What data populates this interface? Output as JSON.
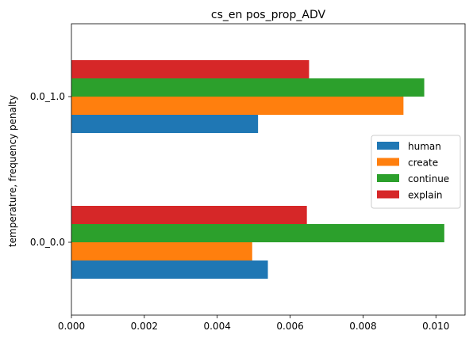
{
  "chart_data": {
    "type": "bar",
    "orientation": "horizontal",
    "title": "cs_en pos_prop_ADV",
    "xlabel": "",
    "ylabel": "temperature, frequency penalty",
    "categories": [
      "0.0_0.0",
      "0.0_1.0"
    ],
    "xlim": [
      0,
      0.0108
    ],
    "xticks": [
      0.0,
      0.002,
      0.004,
      0.006,
      0.008,
      0.01
    ],
    "xtick_labels": [
      "0.000",
      "0.002",
      "0.004",
      "0.006",
      "0.008",
      "0.010"
    ],
    "series": [
      {
        "name": "human",
        "color": "#1f77b4",
        "values": [
          0.00539,
          0.00512
        ]
      },
      {
        "name": "create",
        "color": "#ff7f0e",
        "values": [
          0.00496,
          0.00911
        ]
      },
      {
        "name": "continue",
        "color": "#2ca02c",
        "values": [
          0.01023,
          0.00968
        ]
      },
      {
        "name": "explain",
        "color": "#d62728",
        "values": [
          0.00646,
          0.00652
        ]
      }
    ],
    "legend_position": "center-right",
    "grid": false
  }
}
